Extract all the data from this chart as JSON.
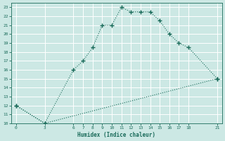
{
  "xlabel": "Humidex (Indice chaleur)",
  "bg_color": "#cce8e4",
  "grid_color": "#ffffff",
  "line_color": "#1a6b5a",
  "curve1_x": [
    0,
    3,
    6,
    7,
    8,
    9,
    10,
    11,
    12,
    13,
    14,
    15,
    16,
    17,
    18,
    21
  ],
  "curve1_y": [
    12,
    10,
    16,
    17,
    18.5,
    21,
    21,
    23,
    22.5,
    22.5,
    22.5,
    21.5,
    20,
    19,
    18.5,
    15
  ],
  "curve2_x": [
    0,
    3,
    21
  ],
  "curve2_y": [
    12,
    10,
    15
  ],
  "xlim": [
    -0.5,
    21.5
  ],
  "ylim": [
    10,
    23.5
  ],
  "xticks": [
    0,
    3,
    6,
    7,
    8,
    9,
    10,
    11,
    12,
    13,
    14,
    15,
    16,
    17,
    18,
    21
  ],
  "yticks": [
    10,
    11,
    12,
    13,
    14,
    15,
    16,
    17,
    18,
    19,
    20,
    21,
    22,
    23
  ]
}
